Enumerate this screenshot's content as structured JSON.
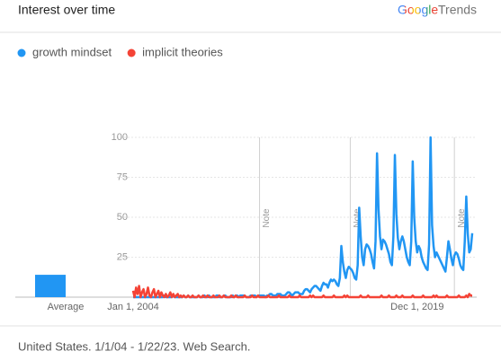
{
  "chart_data": {
    "type": "line",
    "title": "Interest over time",
    "brand": {
      "name": "Google",
      "product": "Trends"
    },
    "footer": "United States. 1/1/04 - 1/22/23. Web Search.",
    "ylim": [
      0,
      100
    ],
    "yticks": [
      25,
      50,
      75,
      100
    ],
    "grid": true,
    "categories": [
      "Jan 1, 2004",
      null,
      null,
      null,
      null,
      null,
      null,
      null,
      null,
      null,
      null,
      null,
      null,
      null,
      null,
      null,
      null,
      null,
      null,
      null,
      null,
      null,
      null,
      null,
      null,
      null,
      null,
      null,
      null,
      null,
      null,
      null,
      null,
      null,
      null,
      null,
      null,
      null,
      null,
      null,
      null,
      null,
      null,
      null,
      null,
      null,
      null,
      null,
      null,
      null,
      null,
      null,
      null,
      null,
      null,
      null,
      null,
      null,
      null,
      null,
      null,
      null,
      null,
      null,
      null,
      null,
      null,
      null,
      null,
      null,
      null,
      null,
      null,
      null,
      null,
      null,
      null,
      null,
      null,
      null,
      null,
      null,
      null,
      null,
      null,
      null,
      null,
      null,
      null,
      null,
      null,
      null,
      null,
      null,
      null,
      null,
      null,
      null,
      null,
      null,
      null,
      null,
      null,
      null,
      null,
      null,
      null,
      null,
      null,
      null,
      null,
      null,
      null,
      null,
      null,
      null,
      null,
      null,
      null,
      null,
      null,
      null,
      null,
      null,
      null,
      null,
      null,
      null,
      null,
      null,
      null,
      null,
      null,
      null,
      null,
      null,
      null,
      null,
      null,
      null,
      null,
      null,
      null,
      null,
      null,
      null,
      null,
      null,
      null,
      null,
      null,
      null,
      null,
      null,
      null,
      null,
      null,
      null,
      null,
      null,
      null,
      null,
      null,
      null,
      null,
      null,
      null,
      null,
      null,
      null,
      null,
      null,
      null,
      null,
      null,
      null,
      null,
      null,
      null,
      null,
      null,
      null,
      null,
      null,
      null,
      null,
      null,
      null,
      null,
      null,
      null,
      "Dec 1, 2019",
      null,
      null,
      null,
      null,
      null,
      null,
      null,
      null,
      null,
      null,
      null,
      null,
      null,
      null,
      null,
      null,
      null,
      null,
      null,
      null,
      null,
      null,
      null,
      null,
      null,
      null,
      null,
      null,
      null,
      null,
      null,
      null,
      null,
      null,
      null,
      null,
      null
    ],
    "series": [
      {
        "name": "growth mindset",
        "color": "#2196f3",
        "values": [
          0,
          0,
          0,
          0,
          0,
          0,
          0,
          0,
          0,
          0,
          0,
          0,
          0,
          0,
          0,
          0,
          0,
          0,
          0,
          0,
          0,
          1,
          0,
          0,
          0,
          0,
          0,
          1,
          0,
          0,
          0,
          0,
          0,
          0,
          1,
          0,
          0,
          1,
          0,
          0,
          0,
          0,
          0,
          0,
          1,
          0,
          0,
          0,
          1,
          0,
          0,
          1,
          0,
          0,
          0,
          0,
          1,
          1,
          0,
          0,
          0,
          1,
          1,
          0,
          0,
          0,
          0,
          1,
          0,
          1,
          1,
          0,
          1,
          1,
          1,
          1,
          0,
          0,
          0,
          1,
          1,
          1,
          1,
          0,
          1,
          1,
          1,
          1,
          1,
          0,
          1,
          1,
          2,
          2,
          1,
          1,
          1,
          2,
          2,
          2,
          1,
          1,
          1,
          2,
          3,
          3,
          2,
          1,
          2,
          3,
          3,
          3,
          2,
          2,
          2,
          4,
          5,
          5,
          4,
          3,
          5,
          6,
          7,
          7,
          6,
          5,
          4,
          7,
          9,
          8,
          8,
          6,
          9,
          11,
          10,
          11,
          10,
          8,
          7,
          12,
          32,
          22,
          16,
          12,
          17,
          19,
          18,
          17,
          15,
          12,
          11,
          20,
          56,
          38,
          25,
          20,
          30,
          33,
          32,
          30,
          27,
          22,
          18,
          35,
          90,
          55,
          38,
          30,
          36,
          35,
          33,
          30,
          27,
          22,
          20,
          38,
          89,
          52,
          37,
          30,
          35,
          38,
          35,
          30,
          25,
          22,
          20,
          35,
          85,
          50,
          35,
          28,
          32,
          30,
          25,
          22,
          20,
          18,
          17,
          33,
          100,
          45,
          32,
          25,
          28,
          26,
          24,
          22,
          20,
          18,
          16,
          25,
          35,
          30,
          24,
          20,
          26,
          28,
          27,
          24,
          20,
          18,
          17,
          35,
          63,
          40,
          28,
          30,
          40
        ]
      },
      {
        "name": "implicit theories",
        "color": "#f44336",
        "values": [
          4,
          0,
          6,
          2,
          7,
          0,
          3,
          5,
          0,
          2,
          6,
          1,
          0,
          3,
          5,
          0,
          2,
          4,
          0,
          3,
          1,
          0,
          2,
          0,
          1,
          3,
          0,
          2,
          0,
          1,
          2,
          0,
          1,
          0,
          1,
          0,
          0,
          1,
          0,
          0,
          1,
          0,
          0,
          0,
          1,
          0,
          0,
          1,
          0,
          0,
          1,
          0,
          0,
          0,
          1,
          0,
          0,
          0,
          1,
          0,
          0,
          1,
          0,
          0,
          0,
          0,
          1,
          0,
          0,
          1,
          0,
          0,
          0,
          0,
          0,
          1,
          0,
          0,
          0,
          0,
          1,
          0,
          0,
          0,
          1,
          0,
          0,
          0,
          0,
          0,
          0,
          1,
          0,
          0,
          0,
          0,
          0,
          0,
          1,
          0,
          0,
          0,
          0,
          0,
          0,
          1,
          0,
          0,
          0,
          0,
          0,
          0,
          1,
          0,
          0,
          0,
          0,
          0,
          0,
          1,
          0,
          1,
          0,
          0,
          0,
          0,
          0,
          0,
          1,
          0,
          0,
          0,
          0,
          0,
          0,
          1,
          0,
          0,
          0,
          0,
          0,
          0,
          1,
          0,
          1,
          0,
          0,
          0,
          0,
          0,
          0,
          0,
          0,
          1,
          0,
          0,
          0,
          0,
          1,
          0,
          0,
          0,
          0,
          0,
          0,
          0,
          0,
          1,
          0,
          0,
          0,
          0,
          1,
          0,
          0,
          0,
          0,
          1,
          0,
          0,
          0,
          1,
          0,
          0,
          0,
          0,
          0,
          0,
          1,
          0,
          0,
          0,
          0,
          0,
          0,
          1,
          0,
          0,
          0,
          0,
          0,
          0,
          1,
          0,
          1,
          0,
          0,
          0,
          0,
          0,
          0,
          1,
          0,
          0,
          0,
          0,
          0,
          0,
          0,
          1,
          0,
          0,
          0,
          0,
          1,
          0,
          2,
          1,
          1
        ]
      }
    ],
    "annotations": [
      {
        "index": 85,
        "text": "Note"
      },
      {
        "index": 146,
        "text": "Note"
      },
      {
        "index": 216,
        "text": "Note"
      }
    ],
    "average": {
      "label": "Average",
      "values": [
        14,
        0
      ]
    }
  }
}
